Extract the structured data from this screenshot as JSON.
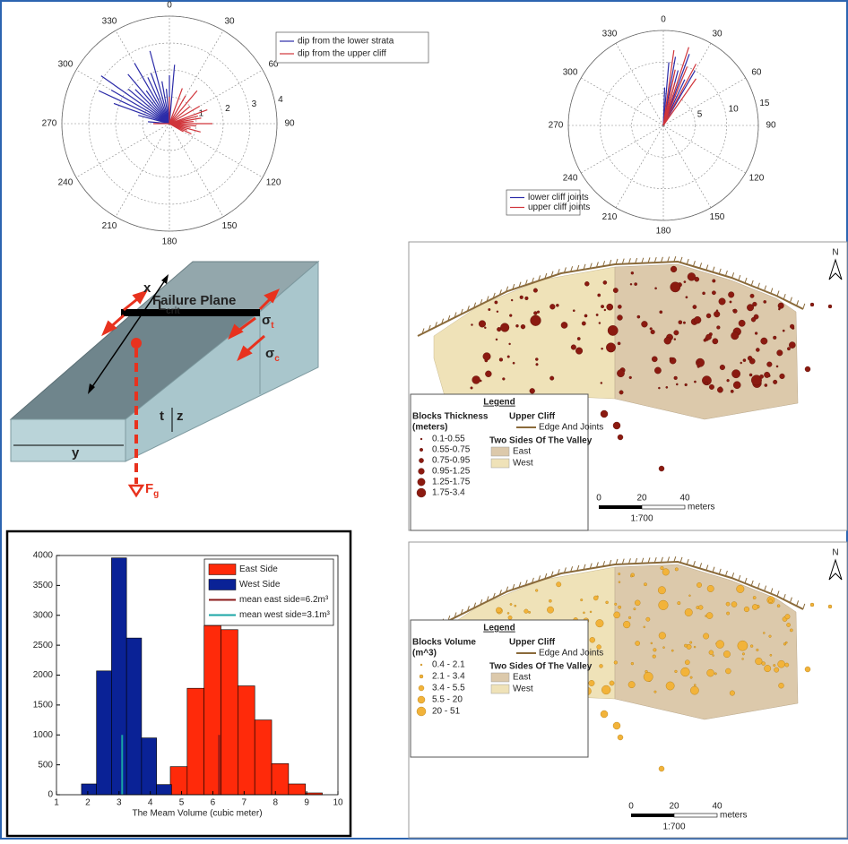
{
  "chart_data": [
    {
      "type": "polar",
      "thetaticks": [
        0,
        30,
        60,
        90,
        120,
        150,
        180,
        210,
        240,
        270,
        300,
        330
      ],
      "rlim": [
        0,
        4
      ],
      "rticks": [
        1,
        2,
        3,
        4
      ],
      "series": [
        {
          "name": "dip from the lower strata",
          "color": "#2b2ba8",
          "theta": [
            290,
            295,
            300,
            305,
            310,
            315,
            320,
            325,
            330,
            335,
            340,
            345,
            350,
            355,
            0,
            5,
            275,
            285
          ],
          "r": [
            2.2,
            2.9,
            2.5,
            3.1,
            2.0,
            1.8,
            2.4,
            1.5,
            2.6,
            1.9,
            2.0,
            2.8,
            1.6,
            1.3,
            1.8,
            2.2,
            0.8,
            1.2
          ]
        },
        {
          "name": "dip from the upper cliff",
          "color": "#d0343a",
          "theta": [
            20,
            30,
            40,
            50,
            60,
            70,
            75,
            80,
            85,
            90,
            95,
            100,
            105,
            110,
            115,
            120,
            270,
            0
          ],
          "r": [
            1.4,
            1.2,
            1.6,
            1.0,
            1.3,
            1.5,
            1.1,
            1.2,
            0.9,
            1.6,
            1.0,
            0.8,
            1.2,
            0.7,
            0.9,
            0.6,
            0.6,
            1.0
          ]
        }
      ]
    },
    {
      "type": "polar",
      "thetaticks": [
        0,
        30,
        60,
        90,
        120,
        150,
        180,
        210,
        240,
        270,
        300,
        330
      ],
      "rlim": [
        0,
        15
      ],
      "rticks": [
        5,
        10,
        15
      ],
      "series": [
        {
          "name": "lower cliff joints",
          "color": "#2b2ba8",
          "theta": [
            5,
            10,
            15,
            20,
            25,
            2,
            30
          ],
          "r": [
            10,
            11,
            9,
            12,
            8,
            6,
            10
          ]
        },
        {
          "name": "upper cliff joints",
          "color": "#d0343a",
          "theta": [
            8,
            12,
            18,
            22,
            28,
            15,
            35
          ],
          "r": [
            12,
            9,
            13,
            10,
            11,
            7,
            9
          ]
        }
      ]
    },
    {
      "type": "histogram",
      "xlabel": "The Meam Volume (cubic meter)",
      "xlim": [
        1,
        10
      ],
      "xticks": [
        1,
        2,
        3,
        4,
        5,
        6,
        7,
        8,
        9,
        10
      ],
      "ylim": [
        0,
        4000
      ],
      "yticks": [
        0,
        500,
        1000,
        1500,
        2000,
        2500,
        3000,
        3500,
        4000
      ],
      "series": [
        {
          "name": "East Side",
          "color": "#ff2a0a",
          "bins": [
            4.64,
            5.18,
            5.72,
            6.26,
            6.8,
            7.34,
            7.88,
            8.42,
            8.96,
            9.5
          ],
          "values": [
            470,
            1780,
            2830,
            2760,
            1820,
            1250,
            520,
            180,
            30
          ]
        },
        {
          "name": "West Side",
          "color": "#0a2296",
          "bins": [
            1.8,
            2.28,
            2.76,
            3.24,
            3.72,
            4.2,
            4.68
          ],
          "values": [
            180,
            2070,
            3960,
            2620,
            950,
            170
          ]
        }
      ],
      "mean_lines": [
        {
          "name": "mean east side=6.2m³",
          "color": "#8b1a1a",
          "x": 6.2,
          "y": 1000
        },
        {
          "name": "mean west side=3.1m³",
          "color": "#19a5a5",
          "x": 3.1,
          "y": 1000
        }
      ]
    }
  ],
  "diagram": {
    "failure_plane": "Failure Plane",
    "x": "x",
    "l_crit": {
      "base": "L",
      "sub": "crit"
    },
    "sigma_t": {
      "base": "σ",
      "sub": "t"
    },
    "sigma_c": {
      "base": "σ",
      "sub": "c"
    },
    "t": "t",
    "z": "z",
    "y": "y",
    "f_g": {
      "base": "F",
      "sub": "g"
    }
  },
  "maps": [
    {
      "legend_title": "Legend",
      "variable": "Blocks Thickness",
      "variable_unit": "(meters)",
      "classes": [
        "0.1-0.55",
        "0.55-0.75",
        "0.75-0.95",
        "0.95-1.25",
        "1.25-1.75",
        "1.75-3.4"
      ],
      "layer": "Upper Cliff",
      "layer_item": "Edge And Joints",
      "sides_title": "Two Sides Of The Valley",
      "sides": [
        "East",
        "West"
      ],
      "scale_ticks": [
        0,
        20,
        40
      ],
      "scale_unit": "meters",
      "scale_ratio": "1:700",
      "north": "N"
    },
    {
      "legend_title": "Legend",
      "variable": "Blocks Volume",
      "variable_unit": "(m^3)",
      "classes": [
        "0.4 - 2.1",
        "2.1 - 3.4",
        "3.4 - 5.5",
        "5.5 - 20",
        "20 - 51"
      ],
      "layer": "Upper Cliff",
      "layer_item": "Edge And Joints",
      "sides_title": "Two Sides Of The Valley",
      "sides": [
        "East",
        "West"
      ],
      "scale_ticks": [
        0,
        20,
        40
      ],
      "scale_unit": "meters",
      "scale_ratio": "1:700",
      "north": "N"
    }
  ]
}
